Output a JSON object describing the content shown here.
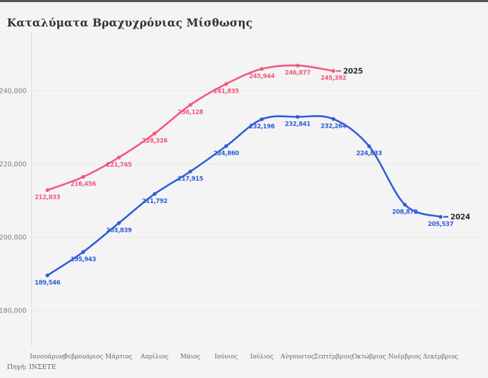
{
  "header": {
    "title": "Καταλύματα Βραχυχρόνιας Μίσθωσης"
  },
  "footer": {
    "source": "Πηγή: ΙΝΣΕΤΕ"
  },
  "chart_data": {
    "type": "line",
    "title": "Καταλύματα Βραχυχρόνιας Μίσθωσης",
    "categories": [
      "Ιανουάριος",
      "Φεβρουάριος",
      "Μάρτιος",
      "Απρίλιος",
      "Μάιος",
      "Ιούνιος",
      "Ιούλιος",
      "Αύγουστος",
      "Σεπτέμβριος",
      "Οκτώβριος",
      "Νοέμβριος",
      "Δεκέμβριος"
    ],
    "series": [
      {
        "name": "2025",
        "color": "#f2577d",
        "values": [
          212833,
          216456,
          221745,
          228326,
          236128,
          241835,
          245944,
          246877,
          245392
        ]
      },
      {
        "name": "2024",
        "color": "#2d5dd7",
        "values": [
          189546,
          195943,
          203839,
          211792,
          217915,
          224860,
          232196,
          232841,
          232264,
          224833,
          208872,
          205537
        ]
      }
    ],
    "yticks": [
      180000,
      200000,
      220000,
      240000
    ],
    "ytick_labels": [
      "180,000",
      "200,000",
      "220,000",
      "240,000"
    ],
    "ylim": [
      170000,
      256000
    ],
    "xlabel": "",
    "ylabel": "",
    "grid": true,
    "legend_position": "line-end",
    "colors": {
      "background": "#f4f4f5",
      "top_border": "#55565a",
      "grid": "#e7e7e8",
      "axis": "#dcdcde",
      "tick_text": "#7c7c7e",
      "month_text": "#686868",
      "year_label": "#2a2a2a"
    }
  }
}
